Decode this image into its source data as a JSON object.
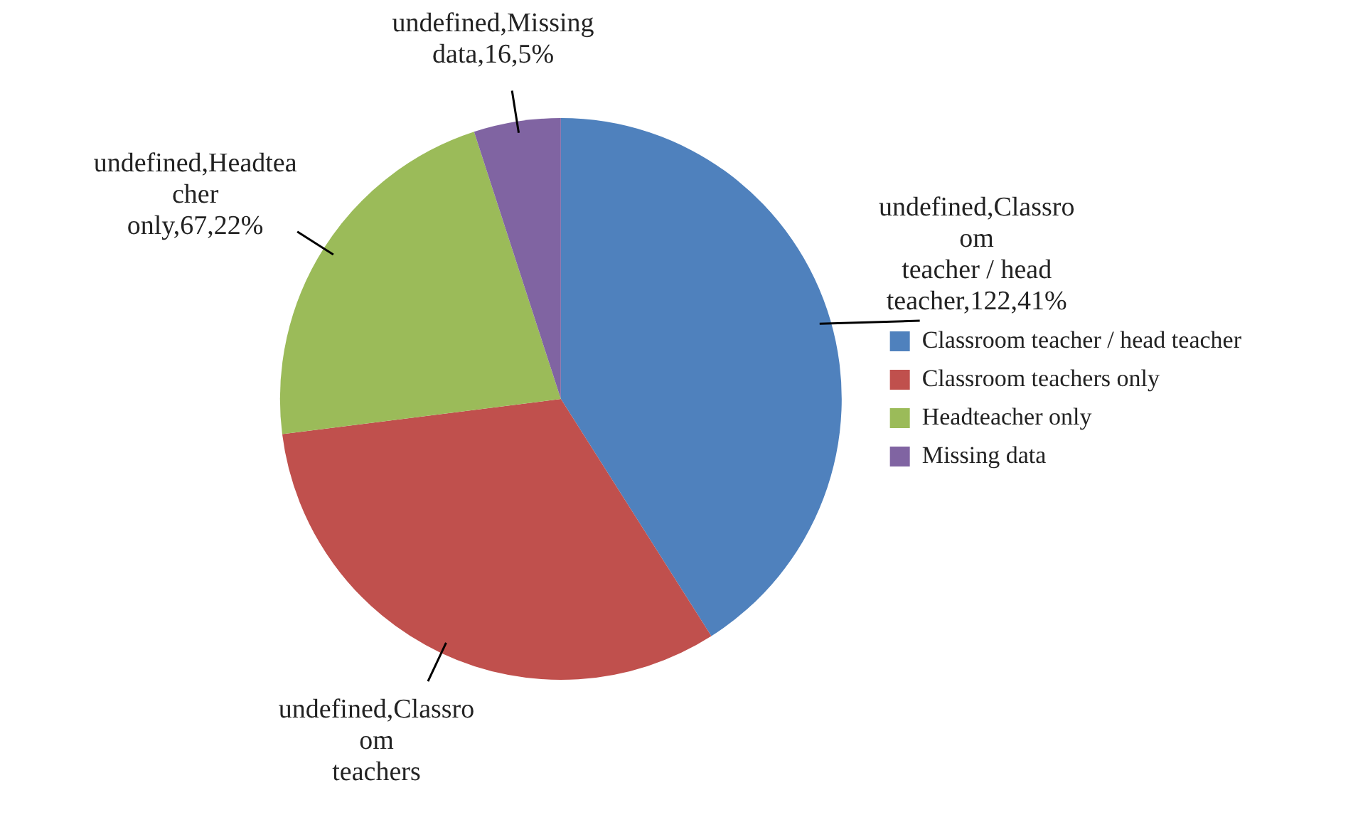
{
  "chart_data": {
    "type": "pie",
    "categories": [
      "Classroom teacher / head teacher",
      "Classroom teachers only",
      "Headteacher only",
      "Missing data"
    ],
    "values": [
      41,
      32,
      22,
      5
    ],
    "colors": [
      "#4f81bd",
      "#c0504d",
      "#9bbb59",
      "#8064a2"
    ],
    "annotations": [
      "undefined,Classroom teacher / head teacher,122,41%",
      "undefined,Classroom teachers",
      "undefined,Headteacher only,67,22%",
      "undefined,Missing data,16,5%"
    ],
    "legend": "right"
  }
}
